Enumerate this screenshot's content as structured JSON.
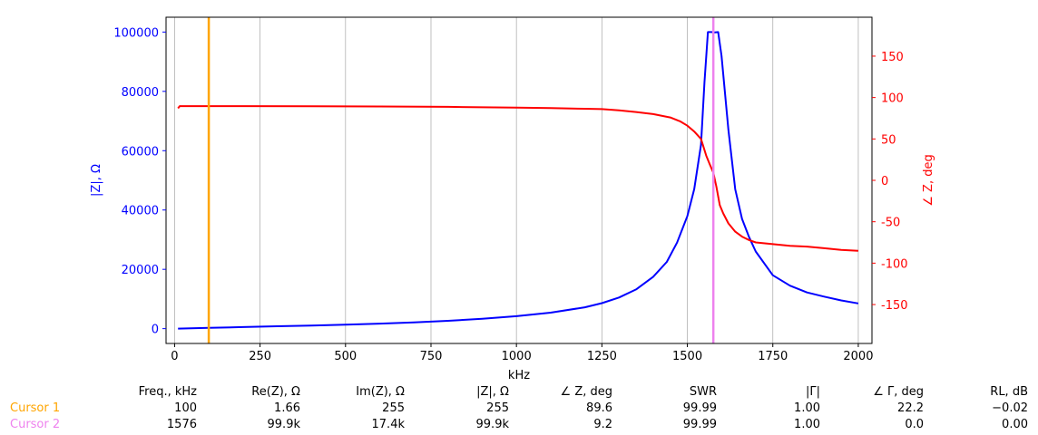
{
  "chart_data": {
    "type": "line",
    "xlabel": "kHz",
    "ylabel_left": "|Z|, Ω",
    "ylabel_right": "∠ Z, deg",
    "xlim": [
      -25,
      2040
    ],
    "ylim_left": [
      -5000,
      105000
    ],
    "ylim_right": [
      -197,
      197
    ],
    "x_ticks": [
      0,
      250,
      500,
      750,
      1000,
      1250,
      1500,
      1750,
      2000
    ],
    "y_left_ticks": [
      0,
      20000,
      40000,
      60000,
      80000,
      100000
    ],
    "y_right_ticks": [
      -150,
      -100,
      -50,
      0,
      50,
      100,
      150
    ],
    "grid": "vertical",
    "colors": {
      "left_axis": "#0000ff",
      "right_axis": "#ff0000",
      "cursor1": "#ffa500",
      "cursor2": "#ee82ee"
    },
    "series": [
      {
        "axis": "left",
        "color": "#0000ff",
        "x": [
          10,
          100,
          200,
          300,
          400,
          500,
          600,
          700,
          800,
          900,
          1000,
          1100,
          1200,
          1250,
          1300,
          1350,
          1400,
          1440,
          1470,
          1500,
          1520,
          1540,
          1550,
          1560,
          1570,
          1580,
          1590,
          1600,
          1620,
          1640,
          1660,
          1680,
          1700,
          1750,
          1800,
          1850,
          1900,
          1950,
          2000
        ],
        "values": [
          0,
          255,
          530,
          800,
          1050,
          1350,
          1700,
          2100,
          2650,
          3300,
          4200,
          5400,
          7200,
          8600,
          10500,
          13200,
          17500,
          22500,
          29000,
          38000,
          47000,
          62000,
          83000,
          100000,
          100000,
          99900,
          100000,
          92000,
          67000,
          47000,
          37000,
          31000,
          26000,
          18000,
          14500,
          12200,
          10800,
          9500,
          8500
        ]
      },
      {
        "axis": "right",
        "color": "#ff0000",
        "x": [
          10,
          15,
          100,
          200,
          400,
          600,
          800,
          1000,
          1100,
          1200,
          1250,
          1300,
          1350,
          1400,
          1450,
          1480,
          1500,
          1520,
          1540,
          1555,
          1565,
          1576,
          1585,
          1595,
          1605,
          1620,
          1640,
          1660,
          1680,
          1700,
          1750,
          1800,
          1850,
          1900,
          1950,
          2000
        ],
        "values": [
          87,
          89.6,
          89.6,
          89.6,
          89.4,
          89.2,
          88.8,
          87.8,
          87.2,
          86.5,
          86,
          84.5,
          82.5,
          80,
          76,
          71,
          66,
          59,
          50,
          30,
          20,
          9.2,
          -8,
          -30,
          -40,
          -52,
          -62,
          -68,
          -72,
          -75,
          -77,
          -79,
          -80,
          -82,
          -84,
          -85
        ]
      }
    ],
    "cursors": [
      {
        "name": "Cursor 1",
        "x": 100,
        "color": "#ffa500"
      },
      {
        "name": "Cursor 2",
        "x": 1576,
        "color": "#ee82ee"
      }
    ]
  },
  "table": {
    "headers": [
      "Freq., kHz",
      "Re(Z), Ω",
      "Im(Z), Ω",
      "|Z|, Ω",
      "∠ Z, deg",
      "SWR",
      "|Γ|",
      "∠ Γ, deg",
      "RL, dB"
    ],
    "rows": [
      {
        "label": "Cursor 1",
        "color": "#ffa500",
        "values": [
          "100",
          "1.66",
          "255",
          "255",
          "89.6",
          "99.99",
          "1.00",
          "22.2",
          "−0.02"
        ]
      },
      {
        "label": "Cursor 2",
        "color": "#ee82ee",
        "values": [
          "1576",
          "99.9k",
          "17.4k",
          "99.9k",
          "9.2",
          "99.99",
          "1.00",
          "0.0",
          "0.00"
        ]
      }
    ]
  }
}
